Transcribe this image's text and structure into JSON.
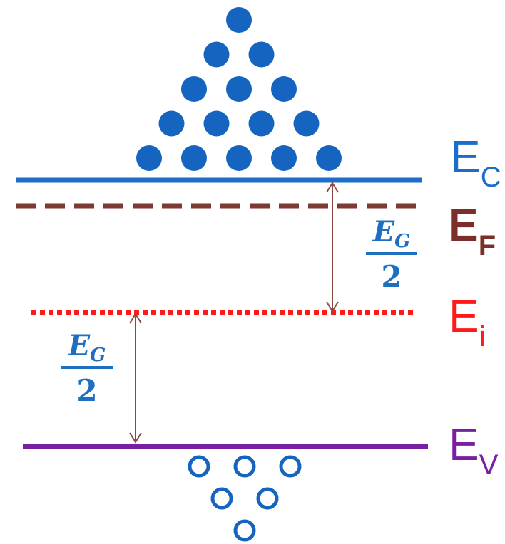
{
  "levels": {
    "conduction": {
      "main": "E",
      "sub": "C",
      "color": "#1a6dc8"
    },
    "fermi": {
      "main": "E",
      "sub": "F",
      "color": "#7b2f2a"
    },
    "intrinsic": {
      "main": "E",
      "sub": "i",
      "color": "#ff1a1a"
    },
    "valence": {
      "main": "E",
      "sub": "V",
      "color": "#7b1fa2"
    }
  },
  "gap_fraction": {
    "numerator": "E",
    "numerator_sub": "G",
    "denominator": "2"
  },
  "electron_rows": [
    1,
    2,
    3,
    4,
    5
  ],
  "hole_rows": [
    3,
    2,
    1
  ],
  "colors": {
    "electron": "#1565c0",
    "hole": "#1565c0",
    "arrow": "#8b4a40"
  }
}
